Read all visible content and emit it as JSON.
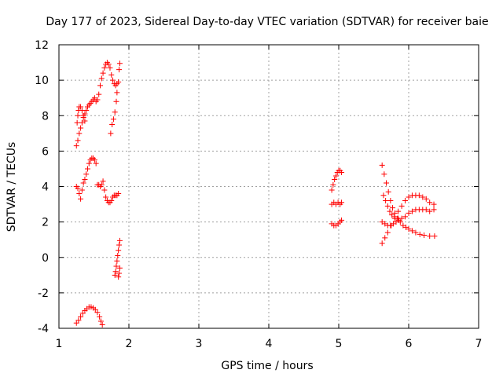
{
  "chart_data": {
    "type": "scatter",
    "title": "Day 177 of 2023, Sidereal Day-to-day VTEC variation (SDTVAR) for receiver baie",
    "xlabel": "GPS time / hours",
    "ylabel": "SDTVAR / TECUs",
    "xlim": [
      1,
      7
    ],
    "ylim": [
      -4,
      12
    ],
    "xticks": [
      "1",
      "2",
      "3",
      "4",
      "5",
      "6",
      "7"
    ],
    "yticks": [
      "-4",
      "-2",
      "0",
      "2",
      "4",
      "6",
      "8",
      "10",
      "12"
    ],
    "grid": true,
    "marker": "plus",
    "color": "#ff0000",
    "series": [
      {
        "values": [
          [
            1.25,
            6.3
          ],
          [
            1.27,
            6.6
          ],
          [
            1.29,
            7.0
          ],
          [
            1.31,
            7.3
          ],
          [
            1.33,
            7.6
          ],
          [
            1.35,
            7.9
          ],
          [
            1.37,
            8.1
          ],
          [
            1.39,
            8.3
          ],
          [
            1.41,
            8.5
          ],
          [
            1.43,
            8.6
          ],
          [
            1.45,
            8.7
          ],
          [
            1.47,
            8.8
          ],
          [
            1.49,
            8.9
          ],
          [
            1.51,
            9.0
          ],
          [
            1.53,
            8.8
          ],
          [
            1.55,
            8.9
          ],
          [
            1.57,
            9.2
          ],
          [
            1.59,
            9.7
          ],
          [
            1.61,
            10.1
          ],
          [
            1.63,
            10.4
          ],
          [
            1.65,
            10.7
          ],
          [
            1.67,
            10.9
          ],
          [
            1.69,
            11.0
          ],
          [
            1.71,
            10.9
          ],
          [
            1.73,
            10.7
          ],
          [
            1.75,
            10.3
          ],
          [
            1.77,
            10.0
          ],
          [
            1.79,
            9.8
          ],
          [
            1.81,
            9.7
          ],
          [
            1.83,
            9.8
          ],
          [
            1.85,
            9.9
          ],
          [
            1.86,
            10.6
          ],
          [
            1.87,
            10.95
          ],
          [
            1.83,
            9.3
          ],
          [
            1.82,
            8.8
          ],
          [
            1.8,
            8.2
          ],
          [
            1.78,
            7.8
          ],
          [
            1.76,
            7.5
          ],
          [
            1.74,
            7.0
          ],
          [
            1.26,
            7.6
          ],
          [
            1.27,
            8.0
          ],
          [
            1.28,
            8.3
          ],
          [
            1.29,
            8.5
          ],
          [
            1.31,
            8.5
          ],
          [
            1.33,
            8.3
          ],
          [
            1.35,
            8.0
          ],
          [
            1.37,
            7.7
          ]
        ]
      },
      {
        "values": [
          [
            1.25,
            4.0
          ],
          [
            1.27,
            3.9
          ],
          [
            1.29,
            3.6
          ],
          [
            1.31,
            3.3
          ],
          [
            1.33,
            3.8
          ],
          [
            1.35,
            4.2
          ],
          [
            1.37,
            4.4
          ],
          [
            1.39,
            4.7
          ],
          [
            1.41,
            5.0
          ],
          [
            1.43,
            5.3
          ],
          [
            1.45,
            5.5
          ],
          [
            1.47,
            5.6
          ],
          [
            1.49,
            5.6
          ],
          [
            1.51,
            5.5
          ],
          [
            1.53,
            5.3
          ],
          [
            1.55,
            4.1
          ],
          [
            1.57,
            4.1
          ],
          [
            1.59,
            4.0
          ],
          [
            1.61,
            4.1
          ],
          [
            1.63,
            4.3
          ],
          [
            1.65,
            3.8
          ],
          [
            1.67,
            3.4
          ],
          [
            1.69,
            3.2
          ],
          [
            1.71,
            3.1
          ],
          [
            1.73,
            3.1
          ],
          [
            1.75,
            3.2
          ],
          [
            1.77,
            3.4
          ],
          [
            1.79,
            3.5
          ],
          [
            1.81,
            3.5
          ],
          [
            1.83,
            3.5
          ],
          [
            1.85,
            3.6
          ]
        ]
      },
      {
        "values": [
          [
            1.8,
            -1.0
          ],
          [
            1.81,
            -0.8
          ],
          [
            1.82,
            -0.5
          ],
          [
            1.83,
            -0.2
          ],
          [
            1.84,
            0.1
          ],
          [
            1.85,
            0.4
          ],
          [
            1.86,
            0.7
          ],
          [
            1.87,
            0.95
          ],
          [
            1.85,
            -1.1
          ],
          [
            1.86,
            -0.9
          ],
          [
            1.87,
            -0.6
          ]
        ]
      },
      {
        "values": [
          [
            1.25,
            -3.7
          ],
          [
            1.28,
            -3.55
          ],
          [
            1.31,
            -3.35
          ],
          [
            1.34,
            -3.15
          ],
          [
            1.37,
            -3.0
          ],
          [
            1.4,
            -2.9
          ],
          [
            1.43,
            -2.8
          ],
          [
            1.46,
            -2.8
          ],
          [
            1.49,
            -2.85
          ],
          [
            1.52,
            -2.95
          ],
          [
            1.55,
            -3.1
          ],
          [
            1.58,
            -3.35
          ],
          [
            1.6,
            -3.6
          ],
          [
            1.62,
            -3.8
          ]
        ]
      },
      {
        "values": [
          [
            4.9,
            3.8
          ],
          [
            4.92,
            4.1
          ],
          [
            4.94,
            4.4
          ],
          [
            4.96,
            4.6
          ],
          [
            4.98,
            4.8
          ],
          [
            5.0,
            4.9
          ],
          [
            5.02,
            4.9
          ],
          [
            5.04,
            4.8
          ],
          [
            4.9,
            3.0
          ],
          [
            4.93,
            3.1
          ],
          [
            4.96,
            3.0
          ],
          [
            4.99,
            3.1
          ],
          [
            5.02,
            3.0
          ],
          [
            5.04,
            3.1
          ],
          [
            4.9,
            1.9
          ],
          [
            4.93,
            1.8
          ],
          [
            4.96,
            1.8
          ],
          [
            4.99,
            1.9
          ],
          [
            5.02,
            2.0
          ],
          [
            5.04,
            2.1
          ]
        ]
      },
      {
        "values": [
          [
            5.62,
            5.2
          ],
          [
            5.65,
            4.7
          ],
          [
            5.68,
            4.2
          ],
          [
            5.71,
            3.7
          ],
          [
            5.74,
            3.2
          ],
          [
            5.77,
            2.8
          ],
          [
            5.8,
            2.5
          ],
          [
            5.84,
            2.2
          ],
          [
            5.88,
            2.0
          ],
          [
            5.92,
            1.8
          ],
          [
            5.96,
            1.7
          ],
          [
            6.0,
            1.6
          ],
          [
            6.05,
            1.5
          ],
          [
            6.1,
            1.4
          ],
          [
            6.16,
            1.3
          ],
          [
            6.22,
            1.25
          ],
          [
            6.3,
            1.2
          ],
          [
            6.37,
            1.2
          ],
          [
            5.62,
            0.8
          ],
          [
            5.66,
            1.1
          ],
          [
            5.7,
            1.4
          ],
          [
            5.75,
            1.8
          ],
          [
            5.8,
            2.2
          ],
          [
            5.85,
            2.6
          ],
          [
            5.9,
            2.9
          ],
          [
            5.95,
            3.2
          ],
          [
            6.0,
            3.4
          ],
          [
            6.05,
            3.5
          ],
          [
            6.1,
            3.5
          ],
          [
            6.15,
            3.5
          ],
          [
            6.2,
            3.4
          ],
          [
            6.25,
            3.3
          ],
          [
            6.3,
            3.1
          ],
          [
            6.36,
            3.0
          ],
          [
            5.64,
            3.5
          ],
          [
            5.67,
            3.2
          ],
          [
            5.7,
            2.9
          ],
          [
            5.73,
            2.6
          ],
          [
            5.76,
            2.4
          ],
          [
            5.8,
            2.3
          ],
          [
            5.85,
            2.2
          ],
          [
            5.9,
            2.2
          ],
          [
            5.95,
            2.3
          ],
          [
            6.0,
            2.5
          ],
          [
            6.05,
            2.6
          ],
          [
            6.1,
            2.7
          ],
          [
            6.15,
            2.7
          ],
          [
            6.2,
            2.7
          ],
          [
            6.25,
            2.7
          ],
          [
            6.3,
            2.6
          ],
          [
            6.36,
            2.7
          ],
          [
            5.62,
            2.0
          ],
          [
            5.66,
            1.9
          ],
          [
            5.7,
            1.8
          ],
          [
            5.74,
            1.8
          ],
          [
            5.78,
            1.9
          ],
          [
            5.82,
            2.0
          ],
          [
            5.86,
            2.1
          ]
        ]
      }
    ]
  }
}
